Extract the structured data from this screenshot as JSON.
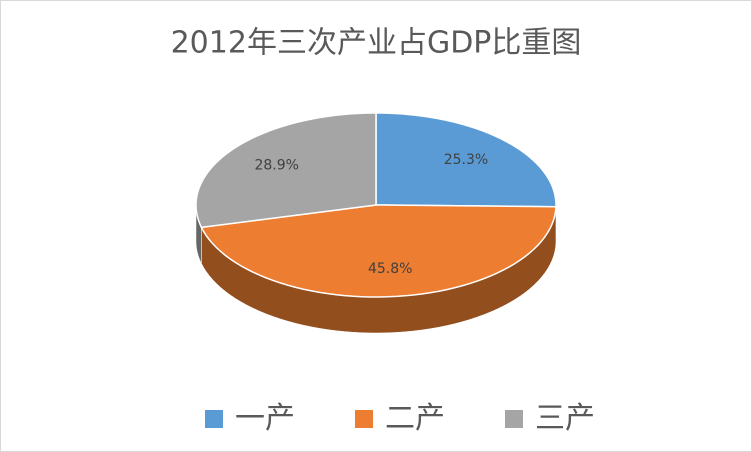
{
  "chart_data": {
    "type": "pie",
    "title": "2012年三次产业占GDP比重图",
    "categories": [
      "一产",
      "二产",
      "三产"
    ],
    "values": [
      25.3,
      45.8,
      28.9
    ],
    "value_labels": [
      "25.3%",
      "45.8%",
      "28.9%"
    ],
    "colors": [
      "#5b9bd5",
      "#ed7d31",
      "#a5a5a5"
    ],
    "legend": "bottom"
  }
}
